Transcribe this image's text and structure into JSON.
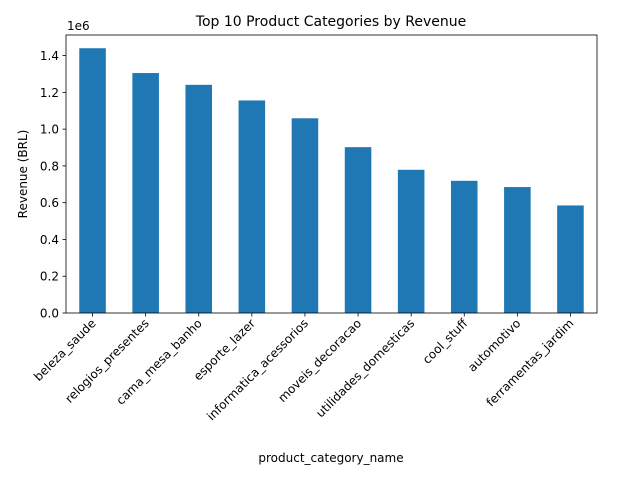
{
  "chart_data": {
    "type": "bar",
    "title": "Top 10 Product Categories by Revenue",
    "xlabel": "product_category_name",
    "ylabel": "Revenue (BRL)",
    "offset_label": "1e6",
    "categories": [
      "beleza_saude",
      "relogios_presentes",
      "cama_mesa_banho",
      "esporte_lazer",
      "informatica_acessorios",
      "moveis_decoracao",
      "utilidades_domesticas",
      "cool_stuff",
      "automotivo",
      "ferramentas_jardim"
    ],
    "values": [
      1440000,
      1305000,
      1241000,
      1156000,
      1059000,
      902000,
      779000,
      719000,
      685000,
      585000
    ],
    "ylim": [
      0,
      1512000
    ],
    "yticks": [
      0,
      200000,
      400000,
      600000,
      800000,
      1000000,
      1200000,
      1400000
    ],
    "ytick_labels": [
      "0.0",
      "0.2",
      "0.4",
      "0.6",
      "0.8",
      "1.0",
      "1.2",
      "1.4"
    ],
    "bar_color": "#1f77b4",
    "grid": false,
    "legend": "none"
  }
}
